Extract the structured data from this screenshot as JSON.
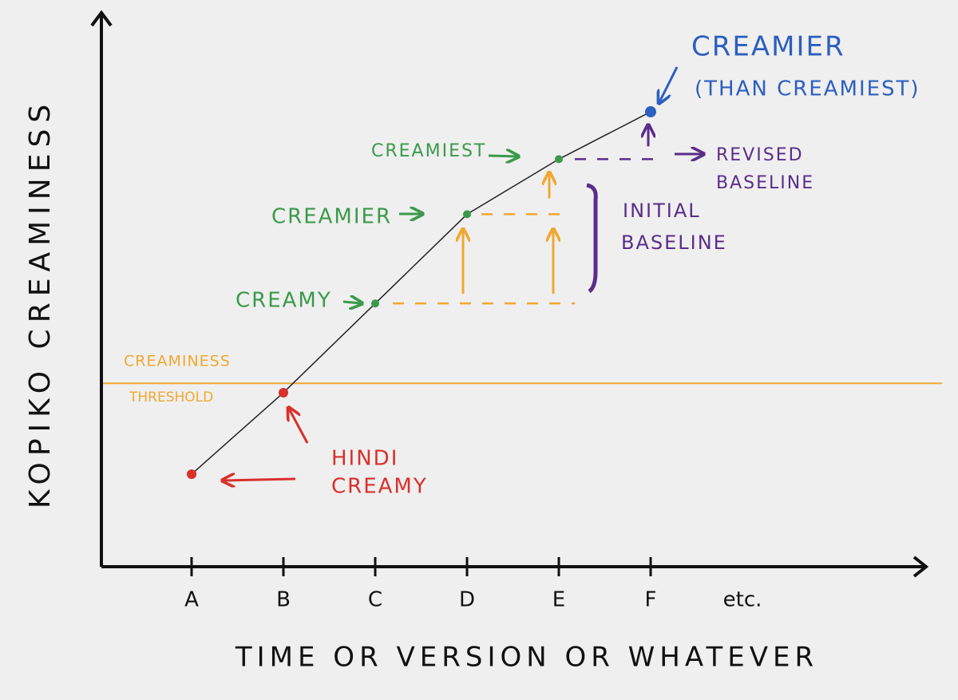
{
  "chart_data": {
    "type": "line",
    "x_label": "TIME OR VERSION OR WHATEVER",
    "y_label": "KOPIKO CREAMINESS",
    "categories": [
      "A",
      "B",
      "C",
      "D",
      "E",
      "F",
      "etc."
    ],
    "series": [
      {
        "color": "#222222",
        "values": [
          16.8,
          31.6,
          47.8,
          64,
          74,
          82.6,
          null
        ],
        "point_colors": [
          "#d9302c",
          "#d9302c",
          "#3a9a4a",
          "#3a9a4a",
          "#3a9a4a",
          "#2c5fbf",
          null
        ]
      }
    ],
    "ylim": [
      0,
      100
    ],
    "threshold": {
      "value": 33.3,
      "label": [
        "CREAMINESS",
        "THRESHOLD"
      ],
      "color": "#f0a830"
    },
    "annotations": [
      {
        "lines": [
          "HINDI",
          "CREAMY"
        ],
        "color": "#d9302c"
      },
      {
        "lines": [
          "CREAMY"
        ],
        "color": "#3a9a4a"
      },
      {
        "lines": [
          "CREAMIER"
        ],
        "color": "#3a9a4a"
      },
      {
        "lines": [
          "CREAMIEST"
        ],
        "color": "#3a9a4a"
      },
      {
        "lines": [
          "CREAMIER",
          "(THAN CREAMIEST)"
        ],
        "color": "#2c5fbf"
      },
      {
        "lines": [
          "INITIAL",
          "BASELINE"
        ],
        "color": "#5a2d8a"
      },
      {
        "lines": [
          "REVISED",
          "BASELINE"
        ],
        "color": "#5a2d8a"
      }
    ]
  }
}
